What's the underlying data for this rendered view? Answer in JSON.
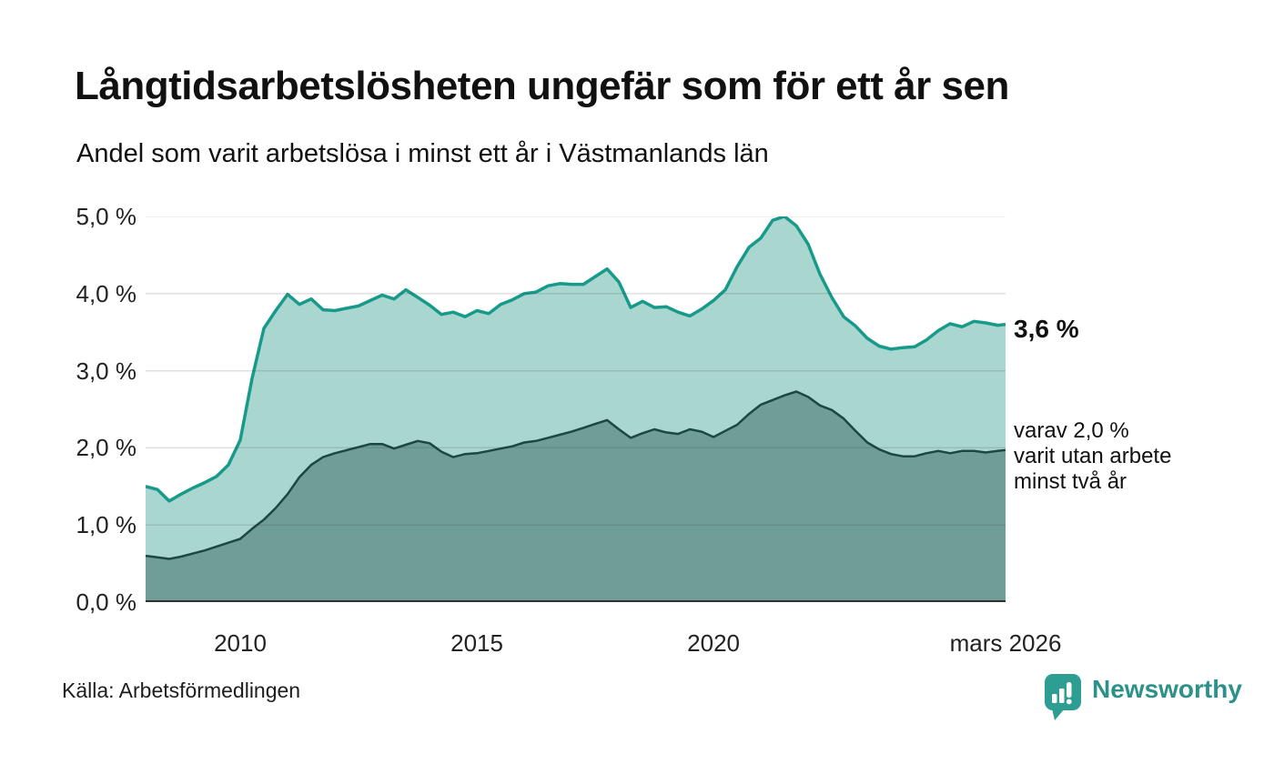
{
  "header": {
    "title": "Långtidsarbetslösheten ungefär som för ett år sen",
    "subtitle": "Andel som varit arbetslösa i minst ett år i Västmanlands län"
  },
  "annotations": {
    "series1_end_label": "3,6 %",
    "series2_end_label_lines": [
      "varav 2,0 %",
      "varit utan arbete",
      "minst två år"
    ]
  },
  "footer": {
    "source": "Källa: Arbetsförmedlingen",
    "logo_text": "Newsworthy",
    "logo_icon": "newsworthy-speech-bubble-bars-icon"
  },
  "colors": {
    "background": "#ffffff",
    "text": "#111111",
    "tick_text": "#222222",
    "grid": "#d9d9d9",
    "grid_overlay": "rgba(45,45,45,0.15)",
    "baseline": "#2f2f2f",
    "series1_line": "#189a8b",
    "series1_fill": "#a9d7d0",
    "series2_line": "#1c4742",
    "series2_fill": "#6f9e99",
    "logo_teal": "#2e9d92",
    "logo_text_color": "#2c9189"
  },
  "chart_data": {
    "type": "area",
    "title": "Långtidsarbetslösheten ungefär som för ett år sen",
    "subtitle": "Andel som varit arbetslösa i minst ett år i Västmanlands län",
    "xlabel": "",
    "ylabel": "",
    "xlim": [
      2008.0,
      2026.17
    ],
    "ylim": [
      0.0,
      5.0
    ],
    "grid": true,
    "legend_position": "end-of-line-labels",
    "y_ticks": [
      {
        "value": 0.0,
        "label": "0,0 %"
      },
      {
        "value": 1.0,
        "label": "1,0 %"
      },
      {
        "value": 2.0,
        "label": "2,0 %"
      },
      {
        "value": 3.0,
        "label": "3,0 %"
      },
      {
        "value": 4.0,
        "label": "4,0 %"
      },
      {
        "value": 5.0,
        "label": "5,0 %"
      }
    ],
    "x_ticks": [
      {
        "value": 2010.0,
        "label": "2010"
      },
      {
        "value": 2015.0,
        "label": "2015"
      },
      {
        "value": 2020.0,
        "label": "2020"
      },
      {
        "value": 2026.17,
        "label": "mars 2026"
      }
    ],
    "x": [
      2008.0,
      2008.25,
      2008.5,
      2008.75,
      2009.0,
      2009.25,
      2009.5,
      2009.75,
      2010.0,
      2010.25,
      2010.5,
      2010.75,
      2011.0,
      2011.25,
      2011.5,
      2011.75,
      2012.0,
      2012.25,
      2012.5,
      2012.75,
      2013.0,
      2013.25,
      2013.5,
      2013.75,
      2014.0,
      2014.25,
      2014.5,
      2014.75,
      2015.0,
      2015.25,
      2015.5,
      2015.75,
      2016.0,
      2016.25,
      2016.5,
      2016.75,
      2017.0,
      2017.25,
      2017.5,
      2017.75,
      2018.0,
      2018.25,
      2018.5,
      2018.75,
      2019.0,
      2019.25,
      2019.5,
      2019.75,
      2020.0,
      2020.25,
      2020.5,
      2020.75,
      2021.0,
      2021.25,
      2021.5,
      2021.75,
      2022.0,
      2022.25,
      2022.5,
      2022.75,
      2023.0,
      2023.25,
      2023.5,
      2023.75,
      2024.0,
      2024.25,
      2024.5,
      2024.75,
      2025.0,
      2025.25,
      2025.5,
      2025.75,
      2026.0,
      2026.17
    ],
    "series": [
      {
        "name": "Andel som varit arbetslösa i minst ett år",
        "end_value_label": "3,6 %",
        "end_value": 3.6,
        "line_color": "#189a8b",
        "fill_color": "#a9d7d0",
        "values": [
          1.5,
          1.46,
          1.31,
          1.4,
          1.48,
          1.55,
          1.63,
          1.78,
          2.1,
          2.9,
          3.55,
          3.78,
          3.99,
          3.86,
          3.93,
          3.79,
          3.78,
          3.81,
          3.84,
          3.91,
          3.98,
          3.93,
          4.05,
          3.95,
          3.85,
          3.73,
          3.76,
          3.7,
          3.78,
          3.74,
          3.86,
          3.92,
          4.0,
          4.02,
          4.1,
          4.13,
          4.12,
          4.12,
          4.22,
          4.32,
          4.15,
          3.82,
          3.9,
          3.82,
          3.83,
          3.76,
          3.71,
          3.8,
          3.91,
          4.05,
          4.35,
          4.6,
          4.72,
          4.95,
          5.0,
          4.88,
          4.64,
          4.25,
          3.95,
          3.7,
          3.58,
          3.42,
          3.32,
          3.28,
          3.3,
          3.31,
          3.4,
          3.52,
          3.61,
          3.57,
          3.64,
          3.62,
          3.59,
          3.6
        ]
      },
      {
        "name": "varav utan arbete minst två år",
        "end_value_label": "varav 2,0 % varit utan arbete minst två år",
        "end_value": 2.0,
        "line_color": "#1c4742",
        "fill_color": "#6f9e99",
        "values": [
          0.6,
          0.58,
          0.56,
          0.59,
          0.63,
          0.67,
          0.72,
          0.77,
          0.82,
          0.95,
          1.07,
          1.22,
          1.4,
          1.62,
          1.78,
          1.88,
          1.93,
          1.97,
          2.01,
          2.05,
          2.05,
          1.99,
          2.04,
          2.09,
          2.06,
          1.95,
          1.88,
          1.92,
          1.93,
          1.96,
          1.99,
          2.02,
          2.07,
          2.09,
          2.13,
          2.17,
          2.21,
          2.26,
          2.31,
          2.36,
          2.24,
          2.13,
          2.19,
          2.24,
          2.2,
          2.18,
          2.24,
          2.21,
          2.14,
          2.22,
          2.3,
          2.44,
          2.56,
          2.62,
          2.68,
          2.73,
          2.66,
          2.55,
          2.49,
          2.38,
          2.22,
          2.07,
          1.98,
          1.92,
          1.89,
          1.89,
          1.93,
          1.96,
          1.93,
          1.96,
          1.96,
          1.94,
          1.96,
          1.97
        ]
      }
    ]
  }
}
